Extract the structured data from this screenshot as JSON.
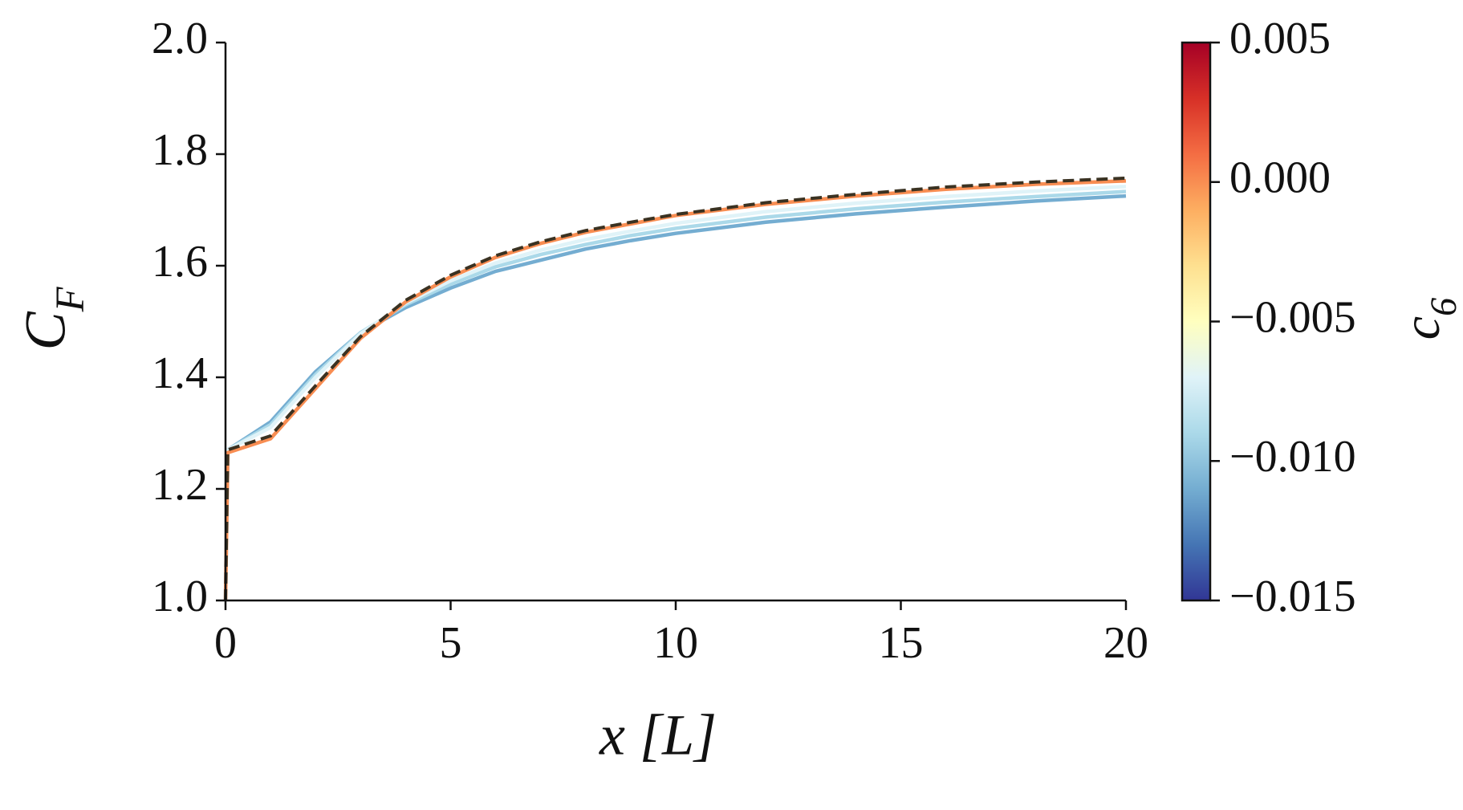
{
  "chart_data": {
    "type": "line",
    "xlabel": "x [L]",
    "ylabel": "C_F",
    "x": [
      0,
      0.05,
      1,
      2,
      3,
      4,
      5,
      6,
      7,
      8,
      9,
      10,
      12,
      14,
      16,
      18,
      20
    ],
    "series": [
      {
        "color": "#74add1",
        "values": [
          1.0,
          1.27,
          1.32,
          1.41,
          1.48,
          1.525,
          1.56,
          1.59,
          1.61,
          1.63,
          1.645,
          1.658,
          1.678,
          1.693,
          1.705,
          1.716,
          1.725
        ]
      },
      {
        "color": "#abd9e9",
        "values": [
          1.0,
          1.27,
          1.315,
          1.405,
          1.48,
          1.53,
          1.567,
          1.598,
          1.62,
          1.638,
          1.654,
          1.667,
          1.687,
          1.702,
          1.714,
          1.724,
          1.733
        ]
      },
      {
        "color": "#e0f3f8",
        "values": [
          1.0,
          1.27,
          1.31,
          1.4,
          1.478,
          1.533,
          1.573,
          1.605,
          1.628,
          1.647,
          1.662,
          1.676,
          1.697,
          1.712,
          1.724,
          1.734,
          1.742
        ]
      },
      {
        "color": "#f88d52",
        "values": [
          1.0,
          1.265,
          1.29,
          1.38,
          1.47,
          1.535,
          1.58,
          1.615,
          1.64,
          1.66,
          1.675,
          1.69,
          1.71,
          1.725,
          1.737,
          1.746,
          1.752
        ]
      },
      {
        "color": "#3a3222",
        "linestyle": "dashed",
        "values": [
          1.0,
          1.27,
          1.295,
          1.385,
          1.473,
          1.538,
          1.583,
          1.618,
          1.643,
          1.663,
          1.678,
          1.692,
          1.713,
          1.728,
          1.741,
          1.75,
          1.757
        ]
      }
    ],
    "xlim": [
      0,
      20
    ],
    "xticks": [
      0,
      5,
      10,
      15,
      20
    ],
    "ylim": [
      1.0,
      2.0
    ],
    "yticks": [
      {
        "value": 1.0,
        "label": "1.0"
      },
      1.2,
      1.4,
      1.6,
      1.8,
      {
        "value": 2.0,
        "label": "2.0"
      }
    ],
    "colorbar": {
      "label": "c_6",
      "lim": [
        -0.015,
        0.005
      ],
      "ticks": [
        {
          "value": -0.015,
          "label": "−0.015"
        },
        {
          "value": -0.01,
          "label": "−0.010"
        },
        {
          "value": -0.005,
          "label": "−0.005"
        },
        {
          "value": 0,
          "label": "0.000"
        },
        0.005
      ]
    },
    "grid": false
  }
}
